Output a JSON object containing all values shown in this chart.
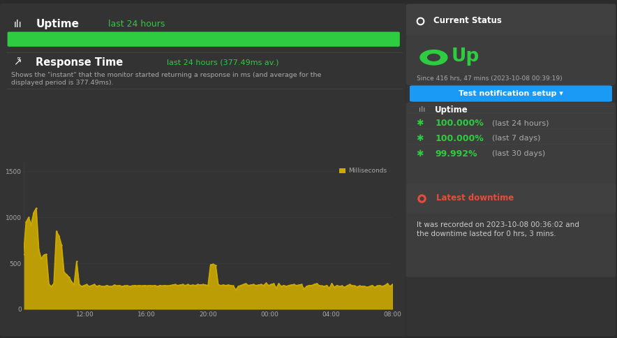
{
  "bg_color": "#2b2b2b",
  "panel_color": "#333333",
  "panel_dark": "#3d3d3d",
  "panel_header": "#404040",
  "border_color": "#444444",
  "text_color": "#ffffff",
  "grey_color": "#aaaaaa",
  "green_color": "#2ecc40",
  "green_dark": "#27ae60",
  "gold_color": "#ccaa00",
  "blue_color": "#1a9af5",
  "red_color": "#e74c3c",
  "uptime_subtitle": "last 24 hours",
  "response_subtitle": "last 24 hours (377.49ms av.)",
  "response_desc1": "Shows the \"instant\" that the monitor started returning a response in ms (and average for the",
  "response_desc2": "displayed period is 377.49ms).",
  "legend_label": "Milliseconds",
  "x_ticks": [
    "12:00",
    "16:00",
    "20:00",
    "00:00",
    "04:00",
    "08:00"
  ],
  "y_ticks": [
    0,
    500,
    1000,
    1500
  ],
  "chart_data": [
    600,
    950,
    1000,
    920,
    1050,
    1100,
    650,
    550,
    590,
    600,
    270,
    250,
    280,
    850,
    800,
    700,
    400,
    380,
    350,
    300,
    270,
    520,
    270,
    250,
    260,
    270,
    250,
    260,
    270,
    250,
    260,
    250,
    250,
    260,
    250,
    250,
    265,
    255,
    260,
    250,
    255,
    260,
    250,
    255,
    260,
    255,
    260,
    255,
    260,
    255,
    260,
    255,
    260,
    250,
    260,
    255,
    260,
    255,
    260,
    265,
    270,
    260,
    265,
    270,
    260,
    270,
    260,
    265,
    260,
    270,
    265,
    270,
    265,
    260,
    485,
    490,
    480,
    270,
    260,
    265,
    260,
    265,
    260,
    255,
    210,
    250,
    260,
    270,
    280,
    260,
    265,
    270,
    260,
    265,
    270,
    260,
    285,
    260,
    270,
    280,
    230,
    280,
    250,
    260,
    250,
    260,
    265,
    270,
    260,
    265,
    270,
    220,
    250,
    260,
    260,
    270,
    280,
    260,
    255,
    250,
    260,
    230,
    280,
    240,
    260,
    250,
    255,
    240,
    255,
    270,
    260,
    255,
    245,
    255,
    250,
    250,
    240,
    250,
    260,
    240,
    255,
    260,
    250,
    260,
    280,
    250,
    270
  ],
  "current_status_label": "Current Status",
  "status_text": "Up",
  "status_since": "Since 416 hrs, 47 mins (2023-10-08 00:39:19)",
  "btn_text": "Test notification setup ▾",
  "uptime_section_label": "Uptime",
  "uptime_rows": [
    {
      "pct": "100.000%",
      "period": "(last 24 hours)"
    },
    {
      "pct": "100.000%",
      "period": "(last 7 days)"
    },
    {
      "pct": "99.992%",
      "period": "(last 30 days)"
    }
  ],
  "downtime_label": "Latest downtime",
  "downtime_text1": "It was recorded on 2023-10-08 00:36:02 and",
  "downtime_text2": "the downtime lasted for 0 hrs, 3 mins."
}
